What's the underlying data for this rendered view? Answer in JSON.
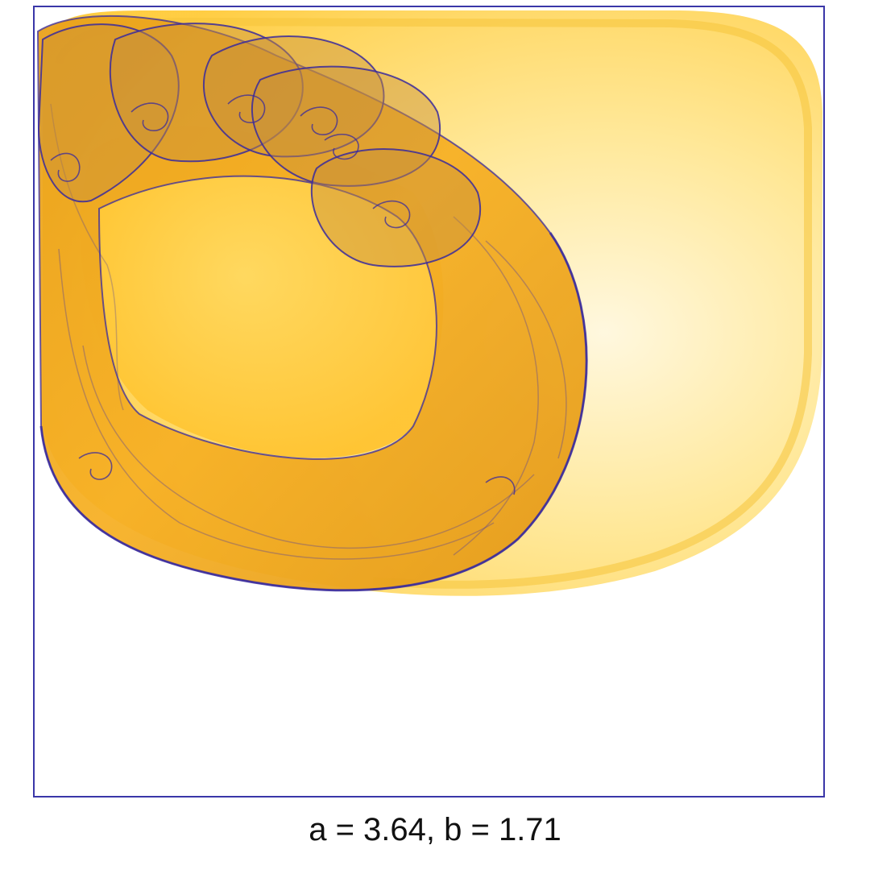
{
  "caption": "a = 3.64, b = 1.71",
  "colors": {
    "frame": "#3a36a8",
    "halo_light": "#fff2c2",
    "halo_mid": "#ffe07a",
    "halo_dark": "#ffcc33",
    "band_fill": "#f6ad1e",
    "band_edge": "#3a2a9c"
  }
}
